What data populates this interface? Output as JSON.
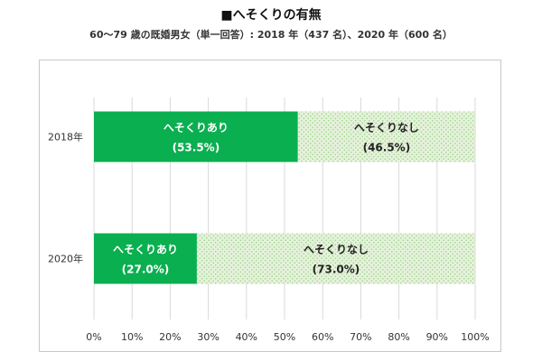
{
  "title": "■へそくりの有無",
  "subtitle": "60～79 歳の既婚男女（単一回答）: 2018 年（437 名）、2020 年（600 名）",
  "colors": {
    "yes": "#0aaf50",
    "no_bg": "#e4f2da",
    "no_dot": "#9ccd8a",
    "grid": "#d9d9d9"
  },
  "chart_data": {
    "type": "bar",
    "orientation": "horizontal",
    "stacked": true,
    "categories": [
      "2018年",
      "2020年"
    ],
    "series": [
      {
        "name": "へそくりあり",
        "values": [
          53.5,
          27.0
        ],
        "labels": [
          "(53.5%)",
          "(27.0%)"
        ]
      },
      {
        "name": "へそくりなし",
        "values": [
          46.5,
          73.0
        ],
        "labels": [
          "(46.5%)",
          "(73.0%)"
        ]
      }
    ],
    "xlim": [
      0,
      100
    ],
    "xticks": [
      "0%",
      "10%",
      "20%",
      "30%",
      "40%",
      "50%",
      "60%",
      "70%",
      "80%",
      "90%",
      "100%"
    ],
    "grid": true,
    "legend": "none"
  }
}
